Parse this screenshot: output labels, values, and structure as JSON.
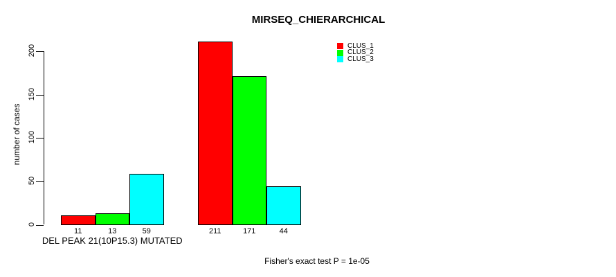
{
  "chart_data": {
    "type": "bar",
    "title": "MIRSEQ_CHIERARCHICAL",
    "ylabel": "number of cases",
    "xlabel": "",
    "categories": [
      "DEL PEAK 21(10P15.3) MUTATED",
      ""
    ],
    "series": [
      {
        "name": "CLUS_1",
        "color": "#FF0000",
        "values": [
          11,
          211
        ]
      },
      {
        "name": "CLUS_2",
        "color": "#00FF00",
        "values": [
          13,
          171
        ]
      },
      {
        "name": "CLUS_3",
        "color": "#00FFFF",
        "values": [
          59,
          44
        ]
      }
    ],
    "yticks": [
      0,
      50,
      100,
      150,
      200
    ],
    "ylim": [
      0,
      211
    ],
    "grid": false,
    "bar_value_labels": true,
    "legend_position": "top-right",
    "annotation": "Fisher's exact test P = 1e-05",
    "axis_color": "#000000",
    "background_color": "#FFFFFF"
  }
}
